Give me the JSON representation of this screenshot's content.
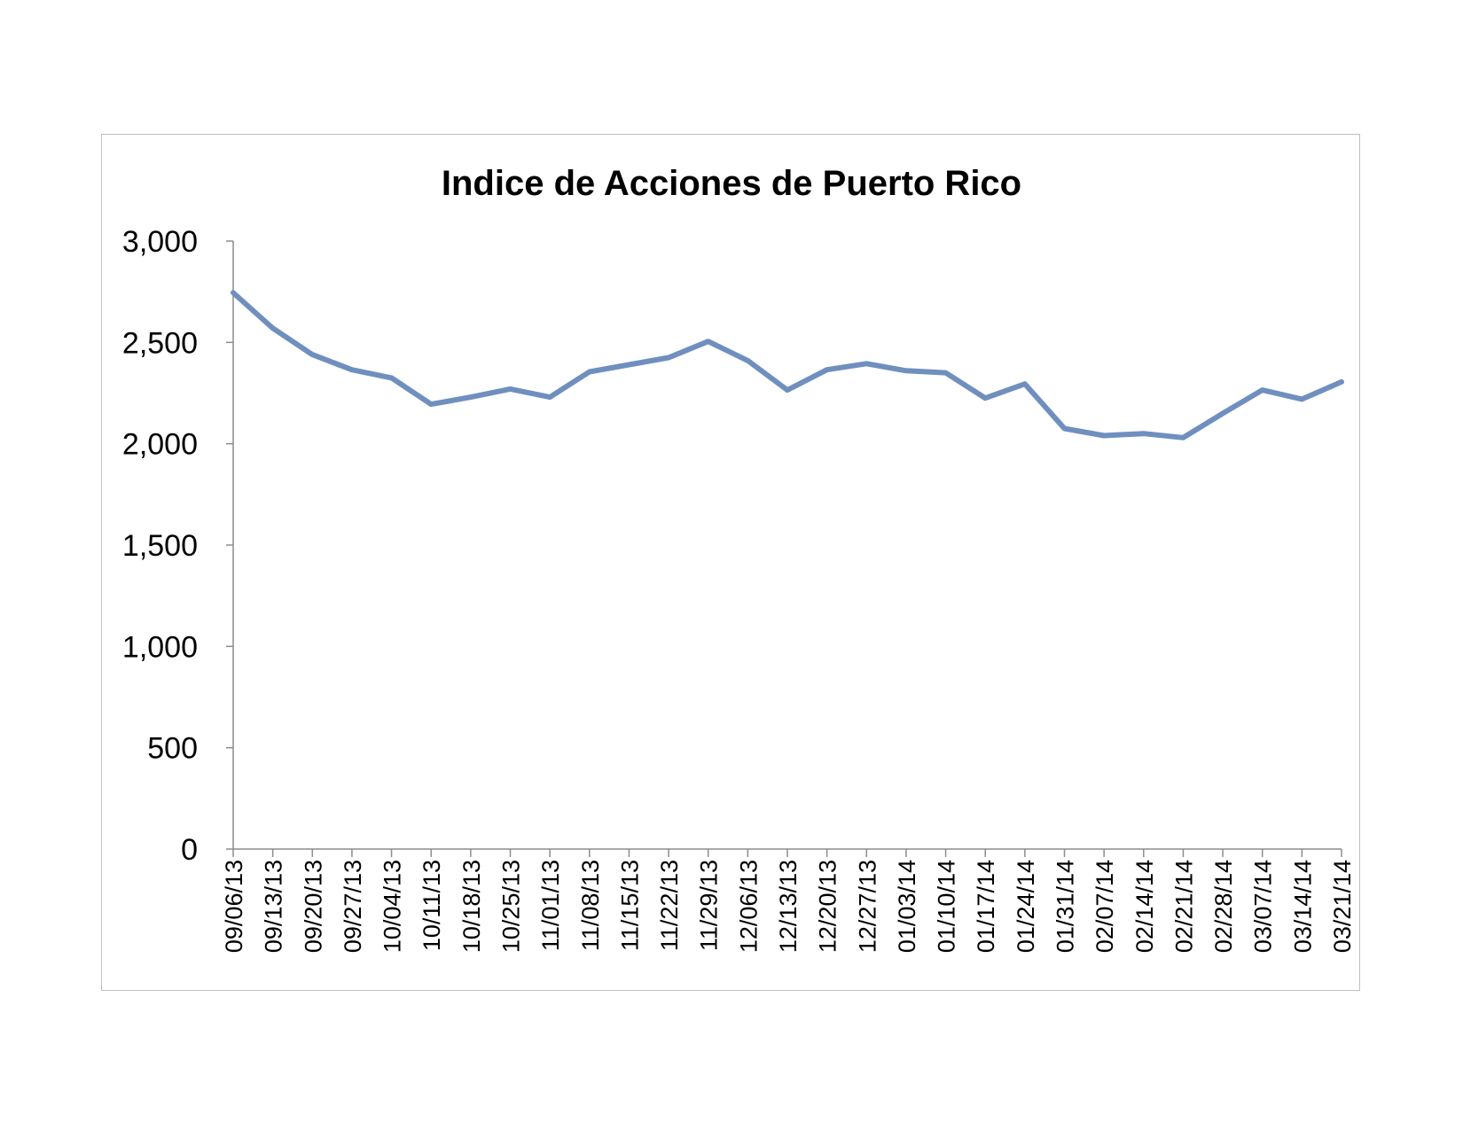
{
  "chart_data": {
    "type": "line",
    "title": "Indice de Acciones de Puerto Rico",
    "xlabel": "",
    "ylabel": "",
    "ylim": [
      0,
      3000
    ],
    "yticks": [
      "0",
      "500",
      "1,000",
      "1,500",
      "2,000",
      "2,500",
      "3,000"
    ],
    "ytick_values": [
      0,
      500,
      1000,
      1500,
      2000,
      2500,
      3000
    ],
    "grid": false,
    "legend": "none",
    "line_color": "#6f8fbf",
    "categories": [
      "09/06/13",
      "09/13/13",
      "09/20/13",
      "09/27/13",
      "10/04/13",
      "10/11/13",
      "10/18/13",
      "10/25/13",
      "11/01/13",
      "11/08/13",
      "11/15/13",
      "11/22/13",
      "11/29/13",
      "12/06/13",
      "12/13/13",
      "12/20/13",
      "12/27/13",
      "01/03/14",
      "01/10/14",
      "01/17/14",
      "01/24/14",
      "01/31/14",
      "02/07/14",
      "02/14/14",
      "02/21/14",
      "02/28/14",
      "03/07/14",
      "03/14/14",
      "03/21/14"
    ],
    "series": [
      {
        "values": [
          2745,
          2570,
          2440,
          2365,
          2325,
          2195,
          2230,
          2270,
          2230,
          2355,
          2390,
          2425,
          2505,
          2410,
          2265,
          2365,
          2395,
          2360,
          2350,
          2225,
          2295,
          2075,
          2040,
          2050,
          2030,
          2150,
          2265,
          2220,
          2305
        ]
      }
    ]
  }
}
